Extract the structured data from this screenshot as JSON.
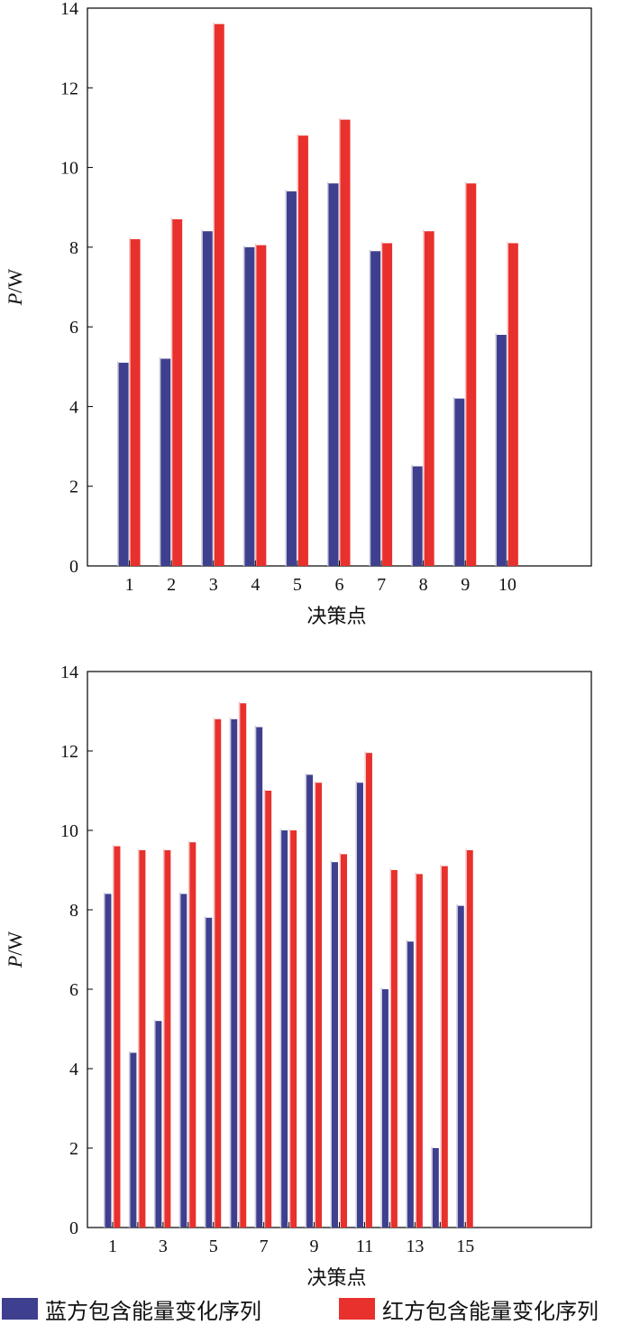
{
  "chart_data": [
    {
      "type": "bar",
      "categories": [
        "1",
        "2",
        "3",
        "4",
        "5",
        "6",
        "7",
        "8",
        "9",
        "10"
      ],
      "x_tick_labels": [
        "1",
        "2",
        "3",
        "4",
        "5",
        "6",
        "7",
        "8",
        "9",
        "10"
      ],
      "series": [
        {
          "name": "蓝方包含能量变化序列",
          "values": [
            5.1,
            5.2,
            8.4,
            8.0,
            9.4,
            9.6,
            7.9,
            2.5,
            4.2,
            5.8
          ]
        },
        {
          "name": "红方包含能量变化序列",
          "values": [
            8.2,
            8.7,
            13.6,
            8.05,
            10.8,
            11.2,
            8.1,
            8.4,
            9.6,
            8.1
          ]
        }
      ],
      "xlabel": "决策点",
      "ylabel_italic": "P",
      "ylabel_unit": "/W",
      "ylim": [
        0,
        14
      ],
      "y_ticks": [
        0,
        2,
        4,
        6,
        8,
        10,
        12,
        14
      ],
      "x_slots": 12
    },
    {
      "type": "bar",
      "categories": [
        "1",
        "2",
        "3",
        "4",
        "5",
        "6",
        "7",
        "8",
        "9",
        "10",
        "11",
        "12",
        "13",
        "14",
        "15"
      ],
      "x_tick_labels": [
        "1",
        "",
        "3",
        "",
        "5",
        "",
        "7",
        "",
        "9",
        "",
        "11",
        "",
        "13",
        "",
        "15"
      ],
      "series": [
        {
          "name": "蓝方包含能量变化序列",
          "values": [
            8.4,
            4.4,
            5.2,
            8.4,
            7.8,
            12.8,
            12.6,
            10.0,
            11.4,
            9.2,
            11.2,
            6.0,
            7.2,
            2.0,
            8.1
          ]
        },
        {
          "name": "红方包含能量变化序列",
          "values": [
            9.6,
            9.5,
            9.5,
            9.7,
            12.8,
            13.2,
            11.0,
            10.0,
            11.2,
            9.4,
            11.95,
            9.0,
            8.9,
            9.1,
            9.5
          ]
        }
      ],
      "xlabel": "决策点",
      "ylabel_italic": "P",
      "ylabel_unit": "/W",
      "ylim": [
        0,
        14
      ],
      "y_ticks": [
        0,
        2,
        4,
        6,
        8,
        10,
        12,
        14
      ],
      "x_slots": 20
    }
  ],
  "legend": [
    {
      "label": "蓝方包含能量变化序列",
      "color": "#3f3f8f"
    },
    {
      "label": "红方包含能量变化序列",
      "color": "#e8302d"
    }
  ]
}
